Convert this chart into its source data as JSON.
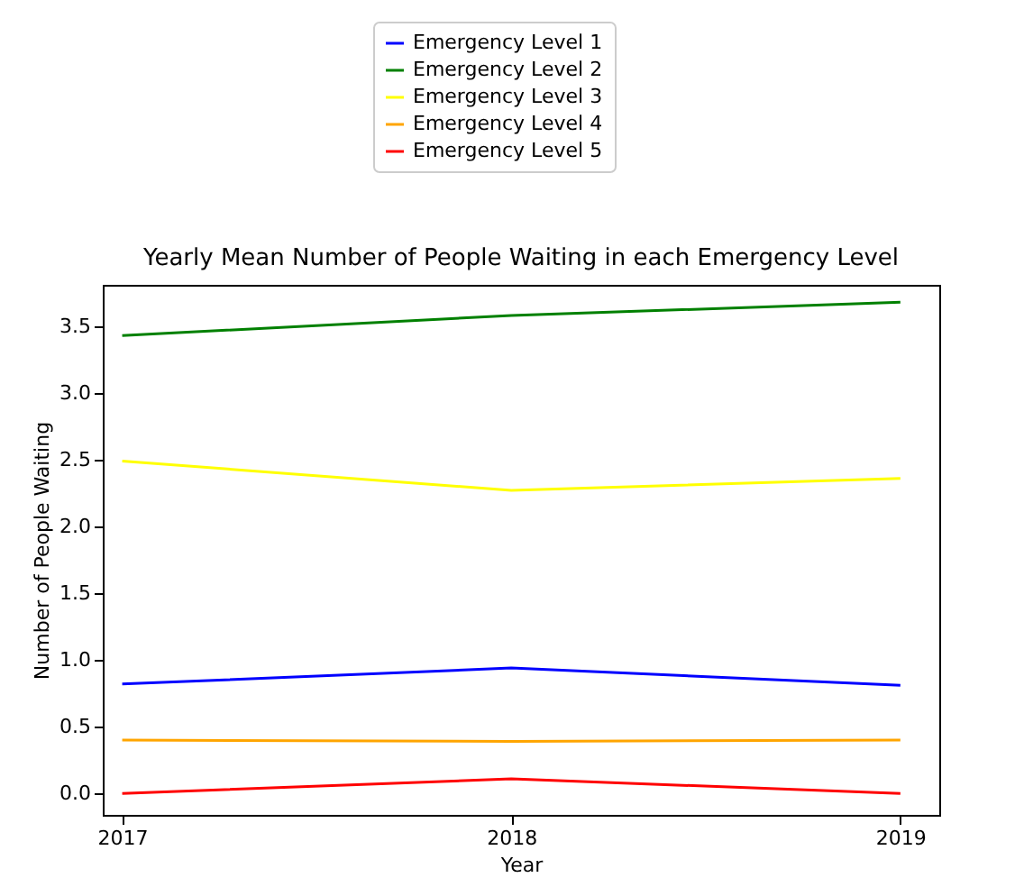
{
  "chart_data": {
    "type": "line",
    "title": "Yearly Mean Number of People Waiting in each Emergency Level",
    "xlabel": "Year",
    "ylabel": "Number of People Waiting",
    "x": [
      2017,
      2018,
      2019
    ],
    "series": [
      {
        "name": "Emergency Level 1",
        "color": "#0000ff",
        "values": [
          0.82,
          0.94,
          0.81
        ]
      },
      {
        "name": "Emergency Level 2",
        "color": "#008000",
        "values": [
          3.43,
          3.58,
          3.68
        ]
      },
      {
        "name": "Emergency Level 3",
        "color": "#ffff00",
        "values": [
          2.49,
          2.27,
          2.36
        ]
      },
      {
        "name": "Emergency Level 4",
        "color": "#ffa500",
        "values": [
          0.4,
          0.39,
          0.4
        ]
      },
      {
        "name": "Emergency Level 5",
        "color": "#ff0000",
        "values": [
          0.0,
          0.11,
          0.0
        ]
      }
    ],
    "xlim": [
      2016.95,
      2019.1
    ],
    "xticks": [
      2017,
      2018,
      2019
    ],
    "ylim": [
      -0.16,
      3.81
    ],
    "yticks": [
      {
        "value": 0,
        "label": "0.0"
      },
      0.5,
      {
        "value": 1,
        "label": "1.0"
      },
      1.5,
      {
        "value": 2,
        "label": "2.0"
      },
      2.5,
      {
        "value": 3,
        "label": "3.0"
      },
      3.5
    ],
    "grid": false,
    "legend": "top",
    "marker": "none",
    "line_style": "solid"
  }
}
